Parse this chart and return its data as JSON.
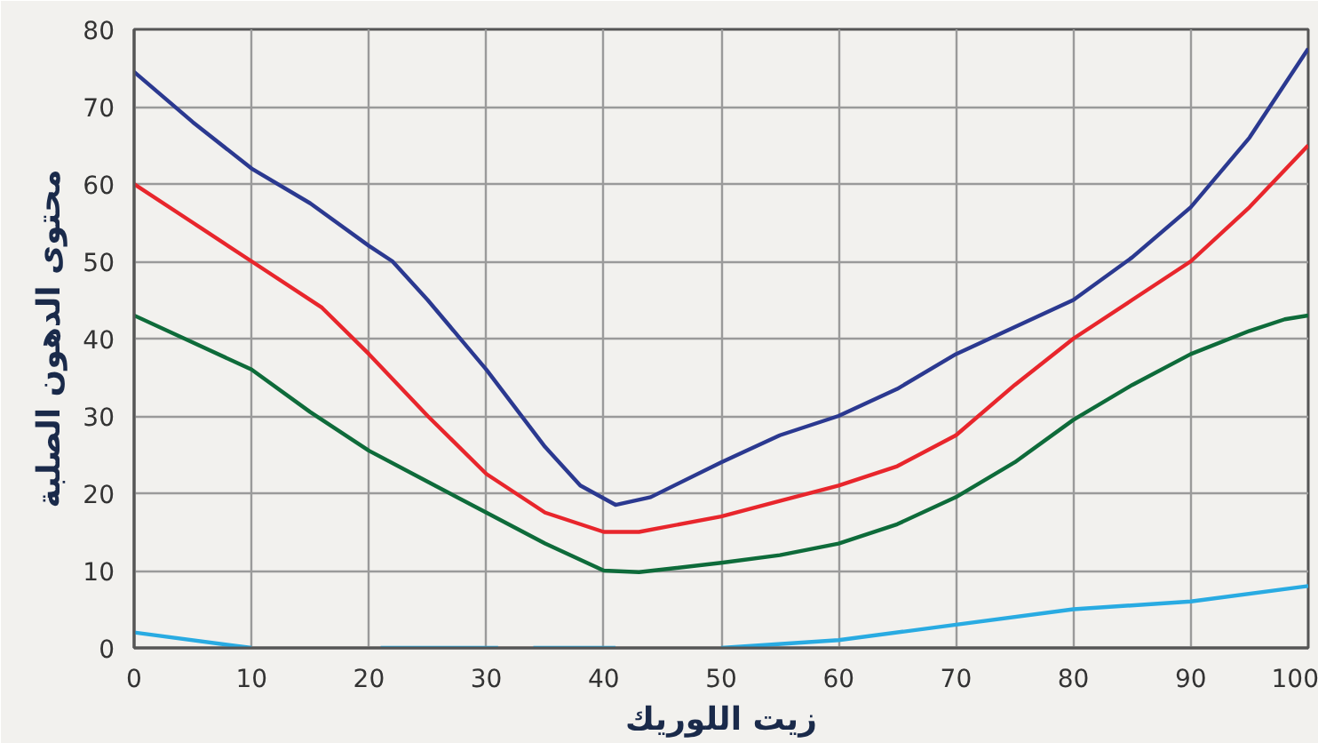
{
  "chart_data": {
    "type": "line",
    "xlabel": "زيت اللوريك",
    "ylabel": "محتوى الدهون الصلبة",
    "xlim": [
      0,
      100
    ],
    "ylim": [
      0,
      80
    ],
    "xticks": [
      0,
      10,
      20,
      30,
      40,
      50,
      60,
      70,
      80,
      90,
      100
    ],
    "yticks": [
      0,
      10,
      20,
      30,
      40,
      50,
      60,
      70,
      80
    ],
    "grid": true,
    "line_style": "solid",
    "marker": "none",
    "series": [
      {
        "color": "#2b3990",
        "x": [
          0,
          5,
          10,
          15,
          20,
          22,
          25,
          30,
          35,
          38,
          41,
          44,
          50,
          55,
          60,
          65,
          70,
          75,
          80,
          85,
          90,
          95,
          100
        ],
        "values": [
          74.5,
          68,
          62,
          57.5,
          52,
          50,
          45,
          36,
          26,
          21,
          18.5,
          19.5,
          24,
          27.5,
          30,
          33.5,
          38,
          41.5,
          45,
          50.5,
          57,
          66,
          77.5
        ]
      },
      {
        "color": "#e8262c",
        "x": [
          0,
          5,
          10,
          16,
          20,
          25,
          30,
          35,
          40,
          43,
          50,
          55,
          60,
          65,
          70,
          75,
          80,
          85,
          90,
          95,
          100
        ],
        "values": [
          60,
          55,
          50,
          44,
          38,
          30,
          22.5,
          17.5,
          15,
          15,
          17,
          19,
          21,
          23.5,
          27.5,
          34,
          40,
          45,
          50,
          57,
          65
        ]
      },
      {
        "color": "#0e6b3a",
        "x": [
          0,
          10,
          15,
          20,
          25,
          30,
          35,
          40,
          43,
          50,
          55,
          60,
          65,
          70,
          75,
          80,
          85,
          90,
          95,
          98,
          100
        ],
        "values": [
          43,
          36,
          30.5,
          25.5,
          21.5,
          17.5,
          13.5,
          10,
          9.8,
          11,
          12,
          13.5,
          16,
          19.5,
          24,
          29.5,
          34,
          38,
          41,
          42.5,
          43
        ]
      },
      {
        "color": "#29abe2",
        "x": [
          0,
          10,
          15,
          21,
          31,
          32.5,
          34,
          41,
          45,
          50,
          60,
          70,
          80,
          90,
          100
        ],
        "values": [
          2,
          0,
          null,
          0,
          0,
          null,
          0,
          0,
          null,
          0,
          1,
          3,
          5,
          6,
          8
        ]
      }
    ]
  }
}
